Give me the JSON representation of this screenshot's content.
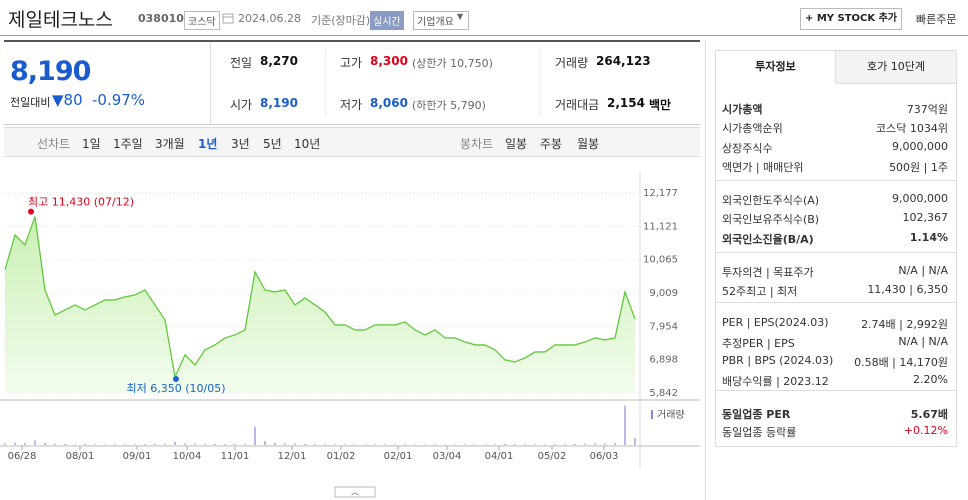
{
  "header": {
    "name": "제일테크노스",
    "code": "038010",
    "market": "코스닥",
    "date": "2024.06.28",
    "basis": "기준(장마감)",
    "realtime": "실시간",
    "overview": "기업개요",
    "my_stock": "+ MY STOCK 추가",
    "quick_order": "빠른주문"
  },
  "quote": {
    "price": "8,190",
    "change_label": "전일대비",
    "change": "▼80",
    "change_rate": "-0.97%",
    "stats": [
      {
        "label": "전일",
        "value": "8,270"
      },
      {
        "label": "고가",
        "value": "8,300",
        "note": "(상한가 10,750)"
      },
      {
        "label": "거래량",
        "value": "264,123"
      },
      {
        "label": "시가",
        "value": "8,190"
      },
      {
        "label": "저가",
        "value": "8,060",
        "note": "(하한가 5,790)"
      },
      {
        "label": "거래대금",
        "value": "2,154",
        "unit": "백만"
      }
    ]
  },
  "period_tabs": {
    "line_label": "선차트",
    "line": [
      "1일",
      "1주일",
      "3개월",
      "1년",
      "3년",
      "5년",
      "10년"
    ],
    "active": 3,
    "candle_label": "봉차트",
    "candle": [
      "일봉",
      "주봉",
      "월봉"
    ]
  },
  "chart_data": {
    "type": "area",
    "color": "#62c93a",
    "values": [
      9739,
      10847,
      10530,
      11430,
      9106,
      8315,
      8473,
      8631,
      8473,
      8631,
      8790,
      8790,
      8885,
      8948,
      9106,
      8631,
      8156,
      6350,
      7048,
      6731,
      7207,
      7365,
      7587,
      7682,
      7840,
      9676,
      9106,
      9043,
      9106,
      8631,
      8853,
      8631,
      8410,
      7998,
      7998,
      7840,
      7840,
      7998,
      7998,
      7998,
      8093,
      7840,
      7682,
      7840,
      7587,
      7587,
      7460,
      7365,
      7365,
      7207,
      6890,
      6826,
      6953,
      7143,
      7143,
      7365,
      7365,
      7365,
      7460,
      7587,
      7523,
      7587,
      9043,
      8190
    ],
    "ylim": [
      5842,
      12177
    ],
    "yticks": [
      {
        "value": 5842,
        "label": "5,842"
      },
      {
        "value": 6898,
        "label": "6,898"
      },
      {
        "value": 7954,
        "label": "7,954"
      },
      {
        "value": 9009,
        "label": "9,009"
      },
      {
        "value": 10065,
        "label": "10,065"
      },
      {
        "value": 11121,
        "label": "11,121"
      },
      {
        "value": 12177,
        "label": "12,177"
      }
    ],
    "grid": true,
    "x_labels": [
      "06/28",
      "08/01",
      "09/01",
      "10/04",
      "11/01",
      "12/01",
      "01/02",
      "02/01",
      "03/04",
      "04/01",
      "05/02",
      "06/03"
    ],
    "high": {
      "index": 3,
      "label": "최고 11,430 (07/12)",
      "color": "#e0001a"
    },
    "low": {
      "index": 17,
      "label": "최저 6,350 (10/05)",
      "color": "#1a63d0"
    },
    "volume": {
      "name": "거래량",
      "color": "#8f86d8",
      "ylim": [
        0,
        1600000
      ],
      "values": [
        60000,
        90000,
        70000,
        180000,
        80000,
        50000,
        40000,
        30000,
        35000,
        30000,
        25000,
        30000,
        28000,
        30000,
        35000,
        40000,
        45000,
        120000,
        60000,
        50000,
        45000,
        40000,
        35000,
        40000,
        45000,
        700000,
        150000,
        80000,
        60000,
        50000,
        40000,
        35000,
        30000,
        30000,
        28000,
        25000,
        25000,
        30000,
        28000,
        25000,
        30000,
        25000,
        25000,
        28000,
        25000,
        25000,
        30000,
        25000,
        25000,
        30000,
        40000,
        35000,
        30000,
        30000,
        28000,
        35000,
        30000,
        40000,
        45000,
        60000,
        50000,
        70000,
        1500000,
        264123
      ]
    }
  },
  "invest_info": {
    "tabs": [
      "투자정보",
      "호가 10단계"
    ],
    "rows": [
      {
        "label": "시가총액",
        "value": "737억원"
      },
      {
        "label": "시가총액순위",
        "value": "코스닥 1034위"
      },
      {
        "label": "상장주식수",
        "value": "9,000,000"
      },
      {
        "label": "액면가 | 매매단위",
        "value": "500원 | 1주"
      },
      {
        "label": "외국인한도주식수(A)",
        "value": "9,000,000"
      },
      {
        "label": "외국인보유주식수(B)",
        "value": "102,367"
      },
      {
        "label": "외국인소진율(B/A)",
        "value": "1.14%"
      },
      {
        "label": "투자의견 | 목표주가",
        "value": "N/A | N/A"
      },
      {
        "label": "52주최고 | 최저",
        "value": "11,430 | 6,350"
      },
      {
        "label": "PER | EPS(2024.03)",
        "value": "2.74배 | 2,992원"
      },
      {
        "label": "추정PER | EPS",
        "value": "N/A | N/A"
      },
      {
        "label": "PBR | BPS (2024.03)",
        "value": "0.58배 | 14,170원"
      },
      {
        "label": "배당수익률 | 2023.12",
        "value": "2.20%"
      },
      {
        "label": "동일업종 PER",
        "value": "5.67배"
      },
      {
        "label": "동일업종 등락률",
        "value": "+0.12%"
      }
    ]
  }
}
